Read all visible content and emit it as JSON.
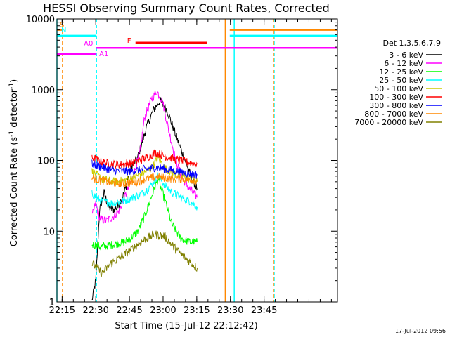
{
  "chart_data": {
    "type": "line",
    "title": "HESSI Observing Summary Count Rates, Corrected",
    "xlabel": "Start Time (15-Jul-12 22:12:42)",
    "ylabel_main": "Corrected Count Rate (s",
    "ylabel_sup1": "-1",
    "ylabel_mid": " detector",
    "ylabel_sup2": "-1",
    "ylabel_end": ")",
    "y_scale": "log",
    "ylim": [
      1,
      10000
    ],
    "xlim_min": [
      0,
      125
    ],
    "x_ticks": [
      {
        "min": 2.3,
        "label": "22:15"
      },
      {
        "min": 17.3,
        "label": "22:30"
      },
      {
        "min": 32.3,
        "label": "22:45"
      },
      {
        "min": 47.3,
        "label": "23:00"
      },
      {
        "min": 62.3,
        "label": "23:15"
      },
      {
        "min": 77.3,
        "label": "23:30"
      },
      {
        "min": 92.3,
        "label": "23:45"
      }
    ],
    "y_ticks": [
      {
        "value": 1,
        "label": "1"
      },
      {
        "value": 10,
        "label": "10"
      },
      {
        "value": 100,
        "label": "100"
      },
      {
        "value": 1000,
        "label": "1000"
      },
      {
        "value": 10000,
        "label": "10000"
      }
    ],
    "legend_title": "Det 1,3,5,6,7,9",
    "legend_placement": "right",
    "series": [
      {
        "name": "3 - 6 keV",
        "color": "#000000",
        "points": [
          [
            15.6,
            1.05
          ],
          [
            17.3,
            2
          ],
          [
            19,
            20
          ],
          [
            21,
            35
          ],
          [
            23,
            22
          ],
          [
            25,
            20
          ],
          [
            27,
            22
          ],
          [
            30,
            35
          ],
          [
            33,
            80
          ],
          [
            36,
            110
          ],
          [
            40,
            300
          ],
          [
            43,
            520
          ],
          [
            46,
            700
          ],
          [
            49,
            520
          ],
          [
            52,
            280
          ],
          [
            55,
            150
          ],
          [
            58,
            85
          ],
          [
            60,
            55
          ],
          [
            62.5,
            40
          ]
        ]
      },
      {
        "name": "6 - 12 keV",
        "color": "#ff00ff",
        "points": [
          [
            15.6,
            16
          ],
          [
            17.3,
            25
          ],
          [
            19,
            15
          ],
          [
            22,
            14
          ],
          [
            25,
            16
          ],
          [
            28,
            20
          ],
          [
            31,
            35
          ],
          [
            34,
            60
          ],
          [
            37,
            130
          ],
          [
            39,
            400
          ],
          [
            42,
            720
          ],
          [
            44.5,
            950
          ],
          [
            47,
            700
          ],
          [
            50,
            250
          ],
          [
            53,
            100
          ],
          [
            56,
            55
          ],
          [
            59,
            40
          ],
          [
            62.5,
            30
          ]
        ]
      },
      {
        "name": "12 - 25 keV",
        "color": "#00ff00",
        "points": [
          [
            15.6,
            6.5
          ],
          [
            20,
            6
          ],
          [
            25,
            6.5
          ],
          [
            30,
            7
          ],
          [
            33,
            8
          ],
          [
            36,
            10
          ],
          [
            39,
            16
          ],
          [
            42,
            30
          ],
          [
            45,
            55
          ],
          [
            48,
            28
          ],
          [
            51,
            13
          ],
          [
            55,
            8
          ],
          [
            59,
            7
          ],
          [
            62.5,
            7
          ]
        ]
      },
      {
        "name": "25 - 50 keV",
        "color": "#00ffff",
        "points": [
          [
            15.6,
            34
          ],
          [
            20,
            26
          ],
          [
            25,
            25
          ],
          [
            30,
            27
          ],
          [
            34,
            30
          ],
          [
            37,
            33
          ],
          [
            40,
            38
          ],
          [
            43,
            50
          ],
          [
            45,
            62
          ],
          [
            48,
            45
          ],
          [
            51,
            36
          ],
          [
            55,
            30
          ],
          [
            59,
            27
          ],
          [
            62.5,
            22
          ]
        ]
      },
      {
        "name": "50 - 100 keV",
        "color": "#cccc00",
        "points": [
          [
            15.6,
            70
          ],
          [
            20,
            55
          ],
          [
            25,
            50
          ],
          [
            30,
            52
          ],
          [
            35,
            60
          ],
          [
            40,
            70
          ],
          [
            43,
            85
          ],
          [
            45,
            110
          ],
          [
            48,
            78
          ],
          [
            52,
            65
          ],
          [
            56,
            60
          ],
          [
            62.5,
            50
          ]
        ]
      },
      {
        "name": "100 - 300 keV",
        "color": "#ff0000",
        "points": [
          [
            15.6,
            110
          ],
          [
            20,
            95
          ],
          [
            25,
            88
          ],
          [
            30,
            88
          ],
          [
            35,
            95
          ],
          [
            40,
            110
          ],
          [
            44,
            128
          ],
          [
            48,
            115
          ],
          [
            52,
            105
          ],
          [
            56,
            98
          ],
          [
            62.5,
            88
          ]
        ]
      },
      {
        "name": "300 - 800 keV",
        "color": "#0000ff",
        "points": [
          [
            15.6,
            90
          ],
          [
            20,
            80
          ],
          [
            25,
            73
          ],
          [
            30,
            70
          ],
          [
            35,
            72
          ],
          [
            40,
            75
          ],
          [
            44,
            80
          ],
          [
            48,
            76
          ],
          [
            52,
            72
          ],
          [
            56,
            68
          ],
          [
            62.5,
            62
          ]
        ]
      },
      {
        "name": "800 - 7000 keV",
        "color": "#ff8800",
        "points": [
          [
            15.6,
            57
          ],
          [
            20,
            52
          ],
          [
            25,
            48
          ],
          [
            30,
            47
          ],
          [
            35,
            50
          ],
          [
            40,
            55
          ],
          [
            44,
            58
          ],
          [
            48,
            57
          ],
          [
            52,
            55
          ],
          [
            56,
            55
          ],
          [
            62.5,
            52
          ]
        ]
      },
      {
        "name": "7000 - 20000 keV",
        "color": "#808000",
        "points": [
          [
            15.6,
            3.5
          ],
          [
            18,
            3
          ],
          [
            20,
            2.5
          ],
          [
            24,
            3.5
          ],
          [
            28,
            4.2
          ],
          [
            32,
            5.2
          ],
          [
            36,
            6.5
          ],
          [
            40,
            8
          ],
          [
            44,
            9
          ],
          [
            48,
            8.5
          ],
          [
            52,
            6
          ],
          [
            56,
            4.5
          ],
          [
            60,
            3.5
          ],
          [
            62.5,
            3
          ]
        ]
      }
    ],
    "annotations": [
      {
        "text": "S",
        "color": "#ff8800"
      },
      {
        "text": "N",
        "color": "#00ffff"
      },
      {
        "text": "A0",
        "color": "#ff00ff"
      },
      {
        "text": "A1",
        "color": "#ff00ff"
      },
      {
        "text": "F",
        "color": "#ff0000"
      }
    ],
    "state_bars": [
      {
        "label_index": 0,
        "value": 7000,
        "x0": 0,
        "x1": 2.5,
        "color": "#ff8800"
      },
      {
        "label_index": 1,
        "value": 5800,
        "x0": 0,
        "x1": 17.6,
        "color": "#00ffff"
      },
      {
        "label_index": 2,
        "value": 3900,
        "x0": 17.6,
        "x1": 125,
        "color": "#ff00ff"
      },
      {
        "label_index": 3,
        "value": 3200,
        "x0": 0,
        "x1": 17.6,
        "color": "#ff00ff"
      },
      {
        "label_index": 4,
        "value": 4600,
        "x0": 35,
        "x1": 67,
        "color": "#ff0000"
      },
      {
        "label_index": -1,
        "value": 7000,
        "x0": 77,
        "x1": 125,
        "color": "#ff8800"
      },
      {
        "label_index": -1,
        "value": 5800,
        "x0": 77,
        "x1": 125,
        "color": "#00ffff"
      }
    ],
    "vertical_markers": [
      {
        "min": 0,
        "color": "#00ffff",
        "dashed": false
      },
      {
        "min": 2.5,
        "color": "#ff8800",
        "dashed": true
      },
      {
        "min": 17.6,
        "color": "#00ffff",
        "dashed": true
      },
      {
        "min": 75,
        "color": "#ff8800",
        "dashed": false
      },
      {
        "min": 79,
        "color": "#00ffff",
        "dashed": false
      },
      {
        "min": 96.5,
        "color": "#ff8800",
        "dashed": true
      },
      {
        "min": 96.8,
        "color": "#00ffff",
        "dashed": true
      }
    ],
    "timestamp": "17-Jul-2012 09:56"
  }
}
